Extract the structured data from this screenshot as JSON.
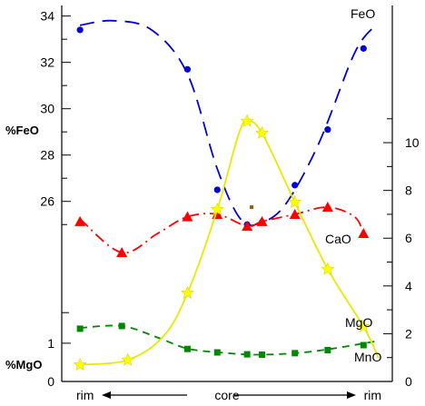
{
  "chart_data": {
    "type": "line",
    "x": [
      0.4,
      2.0,
      4.0,
      5.0,
      6.0,
      6.5,
      7.6,
      8.7,
      9.9
    ],
    "x_range": [
      0,
      10.5
    ],
    "x_axis": {
      "labels": [
        "rim",
        "core",
        "rim"
      ],
      "direction_arrows": true
    },
    "left_axis": {
      "upper": {
        "label": "%FeO",
        "ticks": [
          26,
          28,
          30,
          32,
          34
        ],
        "range": [
          24.5,
          34.3
        ]
      },
      "lower": {
        "label": "%MgO",
        "ticks": [
          0,
          1
        ],
        "range": [
          0,
          1.9
        ]
      }
    },
    "right_axis": {
      "ticks": [
        0,
        2,
        4,
        6,
        8,
        10
      ],
      "range": [
        0,
        11.6
      ]
    },
    "series": [
      {
        "name": "FeO",
        "axis": "left-upper",
        "color": "#0000dd",
        "marker": "circle",
        "line": "long-dash",
        "points": [
          [
            0.4,
            33.4
          ],
          [
            4.0,
            31.7
          ],
          [
            5.0,
            26.5
          ],
          [
            6.0,
            25.0
          ],
          [
            6.5,
            25.1
          ],
          [
            7.6,
            26.7
          ],
          [
            8.7,
            29.1
          ],
          [
            9.9,
            32.6
          ]
        ],
        "curve": [
          [
            0.4,
            33.6
          ],
          [
            1.5,
            33.8
          ],
          [
            2.8,
            33.4
          ],
          [
            4.0,
            31.5
          ],
          [
            5.0,
            27.4
          ],
          [
            5.8,
            25.2
          ],
          [
            6.5,
            25.1
          ],
          [
            7.3,
            25.9
          ],
          [
            8.4,
            28.5
          ],
          [
            9.6,
            32.4
          ],
          [
            10.3,
            33.6
          ]
        ]
      },
      {
        "name": "CaO",
        "axis": "right",
        "color": "#ff0000",
        "marker": "triangle",
        "line": "dash-dot",
        "points": [
          [
            0.4,
            6.7
          ],
          [
            1.8,
            5.4
          ],
          [
            4.0,
            6.9
          ],
          [
            5.0,
            7.0
          ],
          [
            6.0,
            6.5
          ],
          [
            6.5,
            6.7
          ],
          [
            7.6,
            7.0
          ],
          [
            8.7,
            7.3
          ],
          [
            9.9,
            6.2
          ]
        ],
        "curve": [
          [
            0.4,
            6.8
          ],
          [
            1.8,
            5.4
          ],
          [
            3.0,
            6.2
          ],
          [
            4.0,
            6.9
          ],
          [
            5.0,
            7.0
          ],
          [
            6.0,
            6.5
          ],
          [
            6.5,
            6.7
          ],
          [
            7.6,
            7.0
          ],
          [
            8.7,
            7.3
          ],
          [
            9.6,
            6.9
          ],
          [
            9.9,
            6.2
          ]
        ]
      },
      {
        "name": "MgO",
        "axis": "left-lower",
        "color": "#008800",
        "marker": "square",
        "line": "dash",
        "points": [
          [
            0.4,
            1.38
          ],
          [
            1.8,
            1.45
          ],
          [
            4.0,
            0.85
          ],
          [
            5.0,
            0.76
          ],
          [
            6.0,
            0.71
          ],
          [
            6.5,
            0.7
          ],
          [
            7.6,
            0.74
          ],
          [
            8.7,
            0.82
          ],
          [
            9.9,
            0.95
          ]
        ],
        "curve": [
          [
            0.4,
            1.4
          ],
          [
            1.8,
            1.45
          ],
          [
            3.0,
            1.15
          ],
          [
            4.0,
            0.86
          ],
          [
            5.2,
            0.75
          ],
          [
            6.3,
            0.7
          ],
          [
            7.6,
            0.74
          ],
          [
            8.8,
            0.85
          ],
          [
            10.3,
            1.05
          ]
        ]
      },
      {
        "name": "MnO",
        "axis": "right",
        "color": "#ffff00",
        "stroke": "#e8e800",
        "marker": "star",
        "line": "solid",
        "points": [
          [
            0.4,
            0.7
          ],
          [
            2.0,
            0.9
          ],
          [
            4.0,
            3.7
          ],
          [
            5.0,
            7.2
          ],
          [
            6.0,
            10.9
          ],
          [
            6.5,
            10.4
          ],
          [
            7.6,
            7.5
          ],
          [
            8.7,
            4.7
          ],
          [
            9.9,
            2.3
          ]
        ],
        "curve": [
          [
            0.4,
            0.7
          ],
          [
            2.0,
            0.9
          ],
          [
            3.2,
            1.9
          ],
          [
            4.0,
            3.7
          ],
          [
            5.0,
            7.2
          ],
          [
            5.7,
            10.3
          ],
          [
            6.0,
            10.9
          ],
          [
            6.5,
            10.4
          ],
          [
            7.6,
            7.5
          ],
          [
            8.7,
            4.7
          ],
          [
            9.9,
            2.3
          ],
          [
            10.4,
            1.0
          ]
        ]
      }
    ],
    "extra_markers": [
      {
        "x": 6.15,
        "axis": "left-upper",
        "y": 25.75,
        "color": "#b05000",
        "shape": "small-square"
      }
    ]
  }
}
